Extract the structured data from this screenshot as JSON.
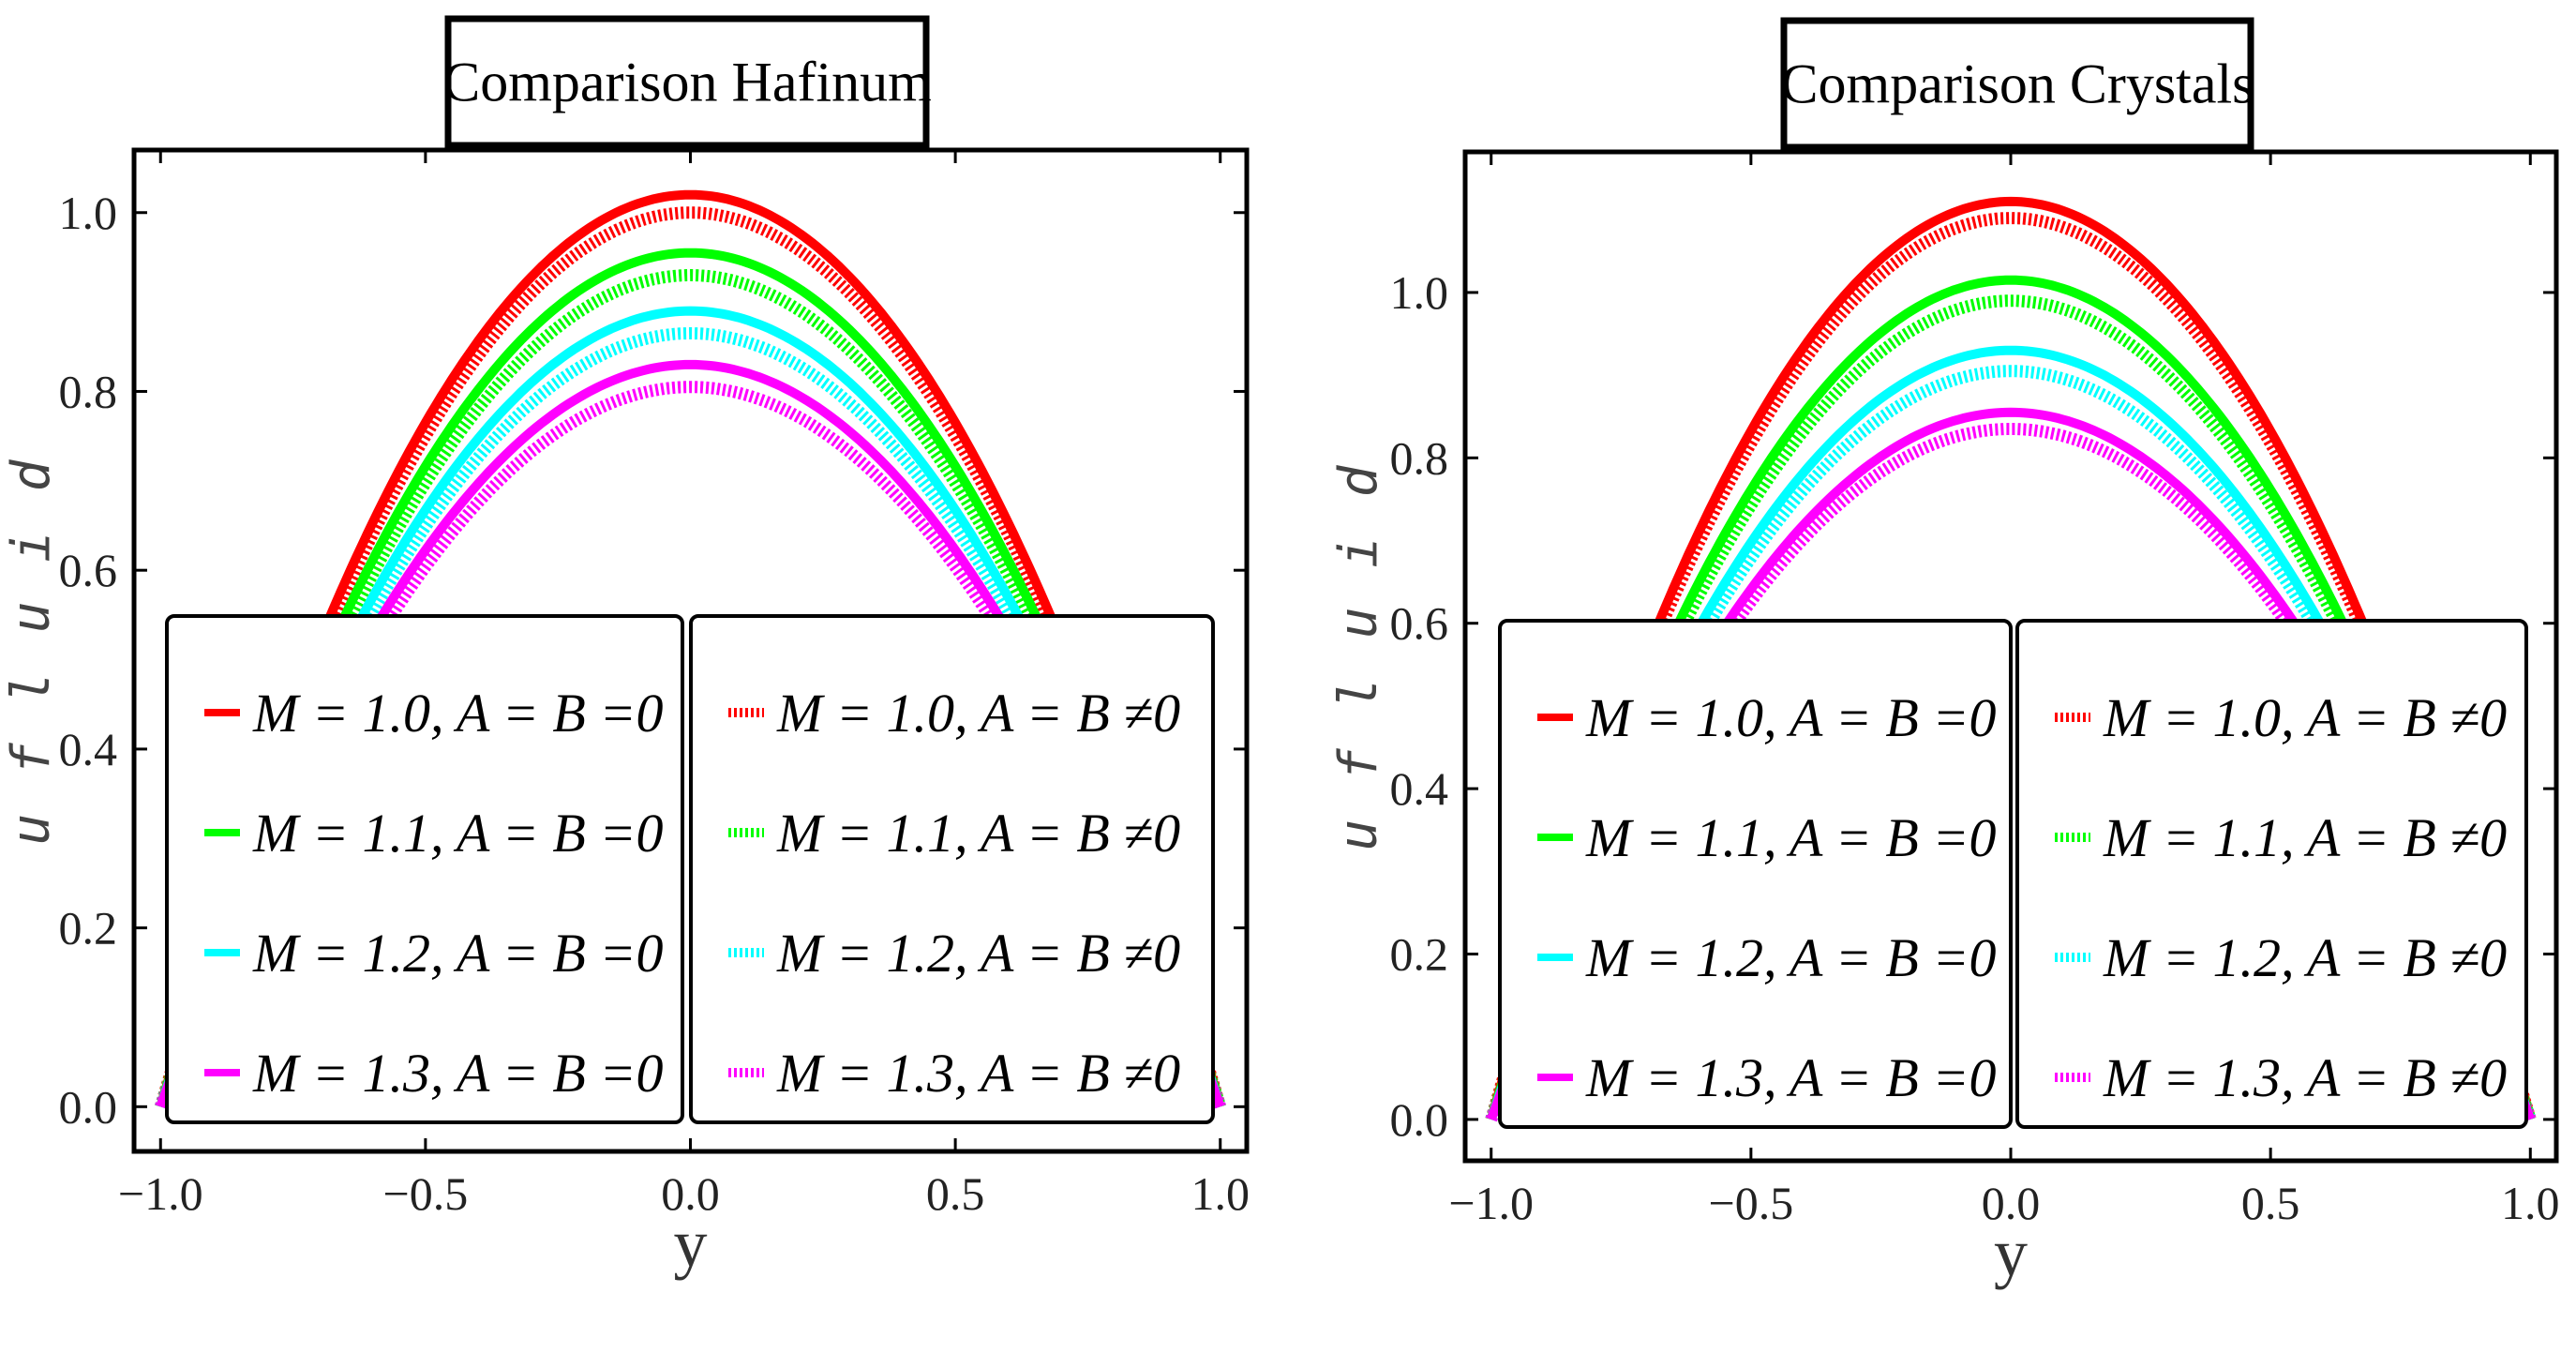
{
  "chart_data": [
    {
      "type": "line",
      "title": "Comparison Hafinum",
      "xlabel": "y",
      "ylabel": "u f l u i d",
      "xlim": [
        -1.05,
        1.05
      ],
      "ylim": [
        -0.05,
        1.07
      ],
      "xticks": [
        "-1.0",
        "-0.5",
        "0.0",
        "0.5",
        "1.0"
      ],
      "yticks": [
        "0.0",
        "0.2",
        "0.4",
        "0.6",
        "0.8",
        "1.0"
      ],
      "series": [
        {
          "name": "M = 1.0, A = B =0",
          "peak": 1.02,
          "color": "#ff0000",
          "style": "solid"
        },
        {
          "name": "M = 1.1, A = B =0",
          "peak": 0.955,
          "color": "#00ff00",
          "style": "solid"
        },
        {
          "name": "M = 1.2, A = B =0",
          "peak": 0.89,
          "color": "#00ffff",
          "style": "solid"
        },
        {
          "name": "M = 1.3, A = B =0",
          "peak": 0.83,
          "color": "#ff00ff",
          "style": "solid"
        },
        {
          "name": "M = 1.0, A = B ≠0",
          "peak": 1.0,
          "color": "#ff0000",
          "style": "dotted"
        },
        {
          "name": "M = 1.1, A = B ≠0",
          "peak": 0.93,
          "color": "#00ff00",
          "style": "dotted"
        },
        {
          "name": "M = 1.2, A = B ≠0",
          "peak": 0.865,
          "color": "#00ffff",
          "style": "dotted"
        },
        {
          "name": "M = 1.3, A = B ≠0",
          "peak": 0.805,
          "color": "#ff00ff",
          "style": "dotted"
        }
      ]
    },
    {
      "type": "line",
      "title": "Comparison Crystals",
      "xlabel": "y",
      "ylabel": "u f l u i d",
      "xlim": [
        -1.05,
        1.05
      ],
      "ylim": [
        -0.05,
        1.17
      ],
      "xticks": [
        "-1.0",
        "-0.5",
        "0.0",
        "0.5",
        "1.0"
      ],
      "yticks": [
        "0.0",
        "0.2",
        "0.4",
        "0.6",
        "0.8",
        "1.0"
      ],
      "series": [
        {
          "name": "M = 1.0, A = B =0",
          "peak": 1.11,
          "color": "#ff0000",
          "style": "solid"
        },
        {
          "name": "M = 1.1, A = B =0",
          "peak": 1.015,
          "color": "#00ff00",
          "style": "solid"
        },
        {
          "name": "M = 1.2, A = B =0",
          "peak": 0.93,
          "color": "#00ffff",
          "style": "solid"
        },
        {
          "name": "M = 1.3, A = B =0",
          "peak": 0.855,
          "color": "#ff00ff",
          "style": "solid"
        },
        {
          "name": "M = 1.0, A = B ≠0",
          "peak": 1.09,
          "color": "#ff0000",
          "style": "dotted"
        },
        {
          "name": "M = 1.1, A = B ≠0",
          "peak": 0.99,
          "color": "#00ff00",
          "style": "dotted"
        },
        {
          "name": "M = 1.2, A = B ≠0",
          "peak": 0.905,
          "color": "#00ffff",
          "style": "dotted"
        },
        {
          "name": "M = 1.3, A = B ≠0",
          "peak": 0.835,
          "color": "#ff00ff",
          "style": "dotted"
        }
      ]
    }
  ]
}
